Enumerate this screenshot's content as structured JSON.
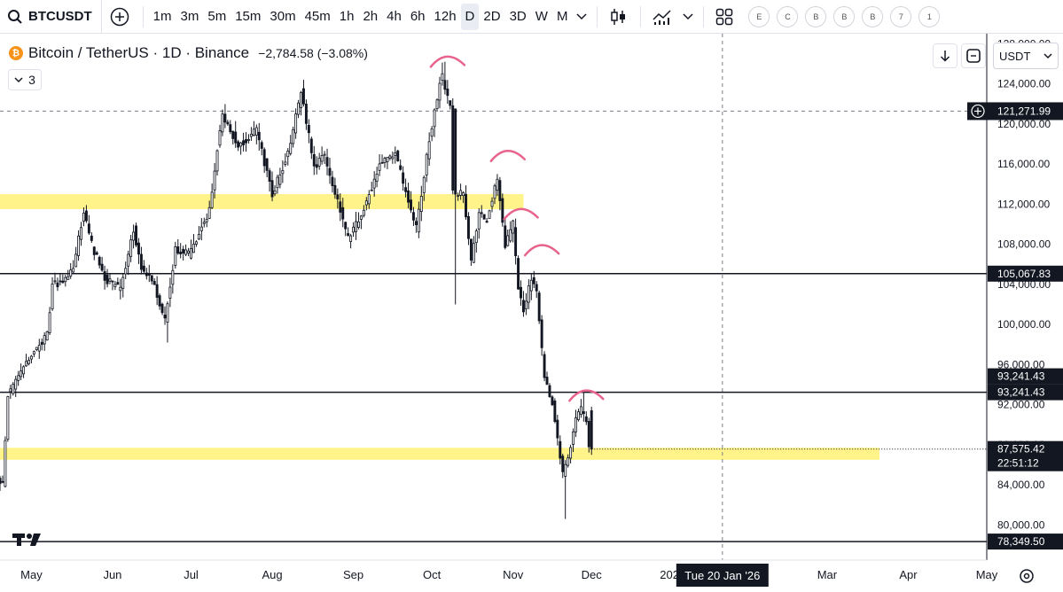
{
  "toolbar": {
    "symbol": "BTCUSDT",
    "timeframes": [
      "1m",
      "3m",
      "5m",
      "15m",
      "30m",
      "45m",
      "1h",
      "2h",
      "4h",
      "6h",
      "12h",
      "D",
      "2D",
      "3D",
      "W",
      "M"
    ],
    "active_timeframe": "D",
    "indicator_badges": [
      "E",
      "C",
      "B",
      "B",
      "B",
      "7",
      "1"
    ]
  },
  "legend": {
    "pair": "Bitcoin / TetherUS · 1D · Binance",
    "change": "−2,784.58 (−3.08%)",
    "collapsed_count": "3"
  },
  "currency_selector": "USDT",
  "icons": {
    "search": "search-icon",
    "add": "plus-circle-icon",
    "candles": "candlestick-icon",
    "indicators": "indicators-icon",
    "layouts": "layout-grid-icon",
    "download": "arrow-down-icon",
    "fullscreen": "fullscreen-icon",
    "settings": "settings-icon",
    "logo": "tradingview-logo-icon"
  },
  "colors": {
    "candle": "#131722",
    "zone": "#fff176",
    "arc": "#e8638c",
    "accent": "#2962ff",
    "label_bg": "#131722"
  },
  "chart_data": {
    "type": "candlestick",
    "y_range": [
      76500,
      129000
    ],
    "y_ticks": [
      {
        "value": 80000,
        "label": "80,000.00"
      },
      {
        "value": 84000,
        "label": "84,000.00"
      },
      {
        "value": 88000,
        "label": "88,000.00"
      },
      {
        "value": 92000,
        "label": "92,000.00"
      },
      {
        "value": 96000,
        "label": "96,000.00"
      },
      {
        "value": 100000,
        "label": "100,000.00"
      },
      {
        "value": 104000,
        "label": "104,000.00"
      },
      {
        "value": 108000,
        "label": "108,000.00"
      },
      {
        "value": 112000,
        "label": "112,000.00"
      },
      {
        "value": 116000,
        "label": "116,000.00"
      },
      {
        "value": 120000,
        "label": "120,000.00"
      },
      {
        "value": 124000,
        "label": "124,000.00"
      },
      {
        "value": 128000,
        "label": "128,000.00"
      }
    ],
    "x_ticks": [
      {
        "date": "2025-05-01",
        "label": "May"
      },
      {
        "date": "2025-06-01",
        "label": "Jun"
      },
      {
        "date": "2025-07-01",
        "label": "Jul"
      },
      {
        "date": "2025-08-01",
        "label": "Aug"
      },
      {
        "date": "2025-09-01",
        "label": "Sep"
      },
      {
        "date": "2025-10-01",
        "label": "Oct"
      },
      {
        "date": "2025-11-01",
        "label": "Nov"
      },
      {
        "date": "2025-12-01",
        "label": "Dec"
      },
      {
        "date": "2026-01-01",
        "label": "2026"
      },
      {
        "date": "2026-03-01",
        "label": "Mar"
      },
      {
        "date": "2026-04-01",
        "label": "Apr"
      },
      {
        "date": "2026-05-01",
        "label": "May"
      }
    ],
    "x_range": [
      "2025-04-19",
      "2026-05-01"
    ],
    "crosshair": {
      "date": "2026-01-20",
      "label": "Tue 20 Jan '26",
      "price": 121271.99,
      "price_label": "121,271.99"
    },
    "horizontal_lines": [
      {
        "value": 105067.83,
        "label": "105,067.83"
      },
      {
        "value": 93241.43,
        "label": "93,241.43"
      },
      {
        "value": 78349.5,
        "label": "78,349.50"
      }
    ],
    "alert_label": "93,241.43",
    "zones": [
      {
        "from": 111500,
        "to": 113000,
        "start": "2025-04-19",
        "end": "2025-11-05"
      },
      {
        "from": 86500,
        "to": 87700,
        "start": "2025-04-19",
        "end": "2026-03-21"
      }
    ],
    "last_price": {
      "value": 87575.42,
      "label": "87,575.42",
      "countdown": "22:51:12"
    },
    "arcs": [
      {
        "date": "2025-10-06",
        "value": 126400
      },
      {
        "date": "2025-10-29",
        "value": 117000
      },
      {
        "date": "2025-11-03",
        "value": 111200
      },
      {
        "date": "2025-11-11",
        "value": 107600
      },
      {
        "date": "2025-11-28",
        "value": 93100
      }
    ],
    "keypoints": [
      [
        "2025-04-19",
        84500
      ],
      [
        "2025-04-21",
        84000
      ],
      [
        "2025-04-23",
        93000
      ],
      [
        "2025-05-01",
        96500
      ],
      [
        "2025-05-08",
        99000
      ],
      [
        "2025-05-10",
        104000
      ],
      [
        "2025-05-14",
        104200
      ],
      [
        "2025-05-18",
        105500
      ],
      [
        "2025-05-22",
        111500
      ],
      [
        "2025-05-25",
        108000
      ],
      [
        "2025-05-30",
        104600
      ],
      [
        "2025-06-05",
        103500
      ],
      [
        "2025-06-10",
        109500
      ],
      [
        "2025-06-13",
        105500
      ],
      [
        "2025-06-17",
        104500
      ],
      [
        "2025-06-22",
        100500
      ],
      [
        "2025-06-26",
        107500
      ],
      [
        "2025-07-01",
        107000
      ],
      [
        "2025-07-09",
        111300
      ],
      [
        "2025-07-12",
        117700
      ],
      [
        "2025-07-14",
        121000
      ],
      [
        "2025-07-20",
        117800
      ],
      [
        "2025-07-27",
        119400
      ],
      [
        "2025-08-02",
        113000
      ],
      [
        "2025-08-08",
        117000
      ],
      [
        "2025-08-13",
        123200
      ],
      [
        "2025-08-18",
        115800
      ],
      [
        "2025-08-22",
        116800
      ],
      [
        "2025-08-31",
        108500
      ],
      [
        "2025-09-05",
        111000
      ],
      [
        "2025-09-12",
        115800
      ],
      [
        "2025-09-18",
        117100
      ],
      [
        "2025-09-22",
        113000
      ],
      [
        "2025-09-26",
        109600
      ],
      [
        "2025-10-01",
        118600
      ],
      [
        "2025-10-05",
        124000
      ],
      [
        "2025-10-06",
        124700
      ],
      [
        "2025-10-09",
        121500
      ],
      [
        "2025-10-10",
        113000
      ],
      [
        "2025-10-14",
        113000
      ],
      [
        "2025-10-17",
        106500
      ],
      [
        "2025-10-20",
        111000
      ],
      [
        "2025-10-23",
        110500
      ],
      [
        "2025-10-27",
        114500
      ],
      [
        "2025-10-30",
        108000
      ],
      [
        "2025-11-02",
        110000
      ],
      [
        "2025-11-04",
        103900
      ],
      [
        "2025-11-06",
        101400
      ],
      [
        "2025-11-09",
        104700
      ],
      [
        "2025-11-11",
        103000
      ],
      [
        "2025-11-14",
        94500
      ],
      [
        "2025-11-17",
        92200
      ],
      [
        "2025-11-20",
        86600
      ],
      [
        "2025-11-21",
        85100
      ],
      [
        "2025-11-23",
        86800
      ],
      [
        "2025-11-26",
        90500
      ],
      [
        "2025-11-28",
        91500
      ],
      [
        "2025-11-30",
        90400
      ],
      [
        "2025-12-01",
        87575
      ]
    ]
  }
}
